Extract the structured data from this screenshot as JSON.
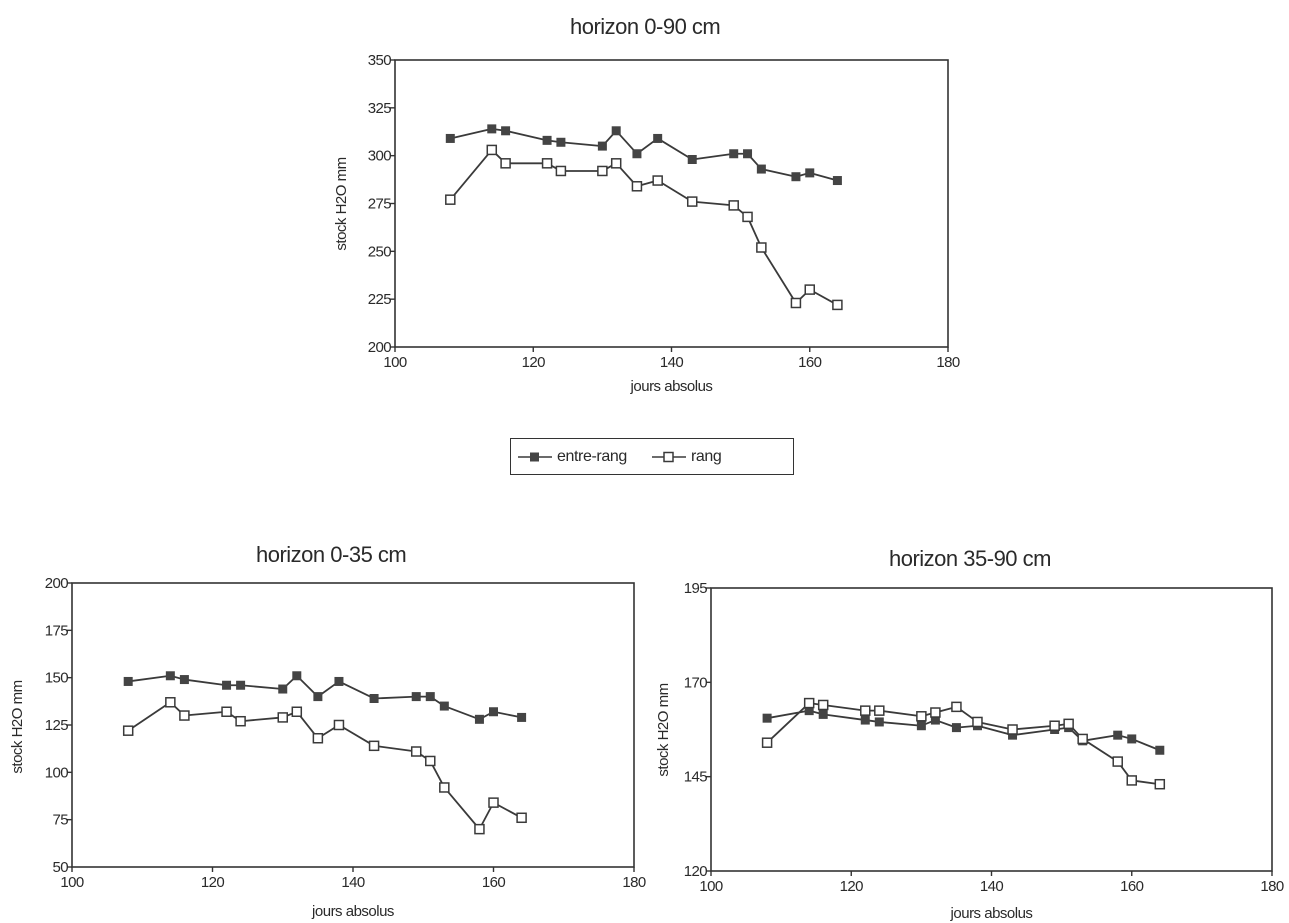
{
  "legend": {
    "entries": [
      {
        "label": "entre-rang",
        "marker": "filled-square"
      },
      {
        "label": "rang",
        "marker": "open-square"
      }
    ]
  },
  "colors": {
    "line": "#3a3a3a",
    "filled_marker": "#444444",
    "frame": "#333333"
  },
  "chart_data": [
    {
      "type": "line",
      "title": "horizon 0-90 cm",
      "xlabel": "jours absolus",
      "ylabel": "stock H2O mm",
      "xlim": [
        100,
        180
      ],
      "ylim": [
        200,
        350
      ],
      "xticks": [
        100,
        120,
        140,
        160,
        180
      ],
      "yticks": [
        200,
        225,
        250,
        275,
        300,
        325,
        350
      ],
      "grid": false,
      "series": [
        {
          "name": "entre-rang",
          "marker": "filled-square",
          "x": [
            108,
            114,
            116,
            122,
            124,
            130,
            132,
            135,
            138,
            143,
            149,
            151,
            153,
            158,
            160,
            164
          ],
          "y": [
            309,
            314,
            313,
            308,
            307,
            305,
            313,
            301,
            309,
            298,
            301,
            301,
            293,
            289,
            291,
            287
          ]
        },
        {
          "name": "rang",
          "marker": "open-square",
          "x": [
            108,
            114,
            116,
            122,
            124,
            130,
            132,
            135,
            138,
            143,
            149,
            151,
            153,
            158,
            160,
            164
          ],
          "y": [
            277,
            303,
            296,
            296,
            292,
            292,
            296,
            284,
            287,
            276,
            274,
            268,
            252,
            223,
            230,
            222
          ]
        }
      ]
    },
    {
      "type": "line",
      "title": "horizon 0-35 cm",
      "xlabel": "jours absolus",
      "ylabel": "stock H2O mm",
      "xlim": [
        100,
        180
      ],
      "ylim": [
        50,
        200
      ],
      "xticks": [
        100,
        120,
        140,
        160,
        180
      ],
      "yticks": [
        50,
        75,
        100,
        125,
        150,
        175,
        200
      ],
      "grid": false,
      "series": [
        {
          "name": "entre-rang",
          "marker": "filled-square",
          "x": [
            108,
            114,
            116,
            122,
            124,
            130,
            132,
            135,
            138,
            143,
            149,
            151,
            153,
            158,
            160,
            164
          ],
          "y": [
            148,
            151,
            149,
            146,
            146,
            144,
            151,
            140,
            148,
            139,
            140,
            140,
            135,
            128,
            132,
            129
          ]
        },
        {
          "name": "rang",
          "marker": "open-square",
          "x": [
            108,
            114,
            116,
            122,
            124,
            130,
            132,
            135,
            138,
            143,
            149,
            151,
            153,
            158,
            160,
            164
          ],
          "y": [
            122,
            137,
            130,
            132,
            127,
            129,
            132,
            118,
            125,
            114,
            111,
            106,
            92,
            70,
            84,
            76
          ]
        }
      ]
    },
    {
      "type": "line",
      "title": "horizon 35-90 cm",
      "xlabel": "jours absolus",
      "ylabel": "stock H2O mm",
      "xlim": [
        100,
        180
      ],
      "ylim": [
        120,
        195
      ],
      "xticks": [
        100,
        120,
        140,
        160,
        180
      ],
      "yticks": [
        120,
        145,
        170,
        195
      ],
      "grid": false,
      "series": [
        {
          "name": "entre-rang",
          "marker": "filled-square",
          "x": [
            108,
            114,
            116,
            122,
            124,
            130,
            132,
            135,
            138,
            143,
            149,
            151,
            153,
            158,
            160,
            164
          ],
          "y": [
            160.5,
            162.5,
            161.5,
            160,
            159.5,
            158.5,
            160,
            158,
            158.5,
            156,
            157.5,
            158,
            154.5,
            156,
            155,
            152
          ]
        },
        {
          "name": "rang",
          "marker": "open-square",
          "x": [
            108,
            114,
            116,
            122,
            124,
            130,
            132,
            135,
            138,
            143,
            149,
            151,
            153,
            158,
            160,
            164
          ],
          "y": [
            154,
            164.5,
            164,
            162.5,
            162.5,
            161,
            162,
            163.5,
            159.5,
            157.5,
            158.5,
            159,
            155,
            149,
            144,
            143
          ]
        }
      ]
    }
  ]
}
